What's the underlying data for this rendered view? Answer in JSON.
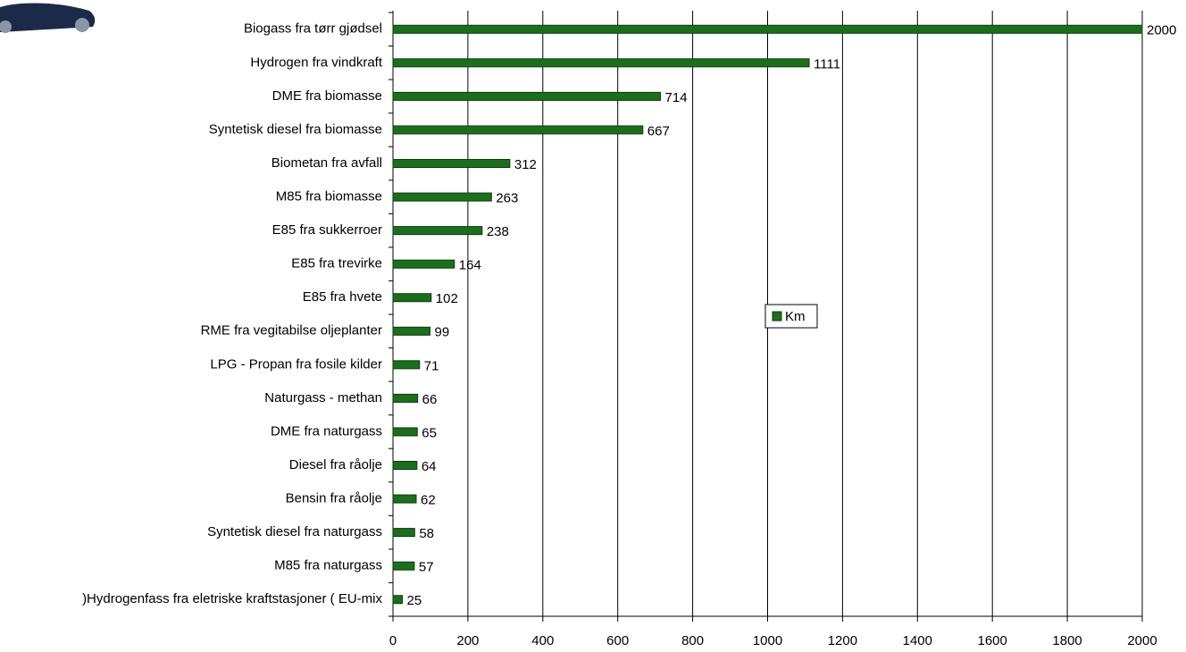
{
  "chart_data": {
    "type": "bar",
    "orientation": "horizontal",
    "categories": [
      "Biogass fra tørr gjødsel",
      "Hydrogen fra vindkraft",
      "DME fra biomasse",
      "Syntetisk diesel fra biomasse",
      "Biometan fra avfall",
      "M85 fra biomasse",
      "E85 fra sukkerroer",
      "E85 fra trevirke",
      "E85 fra hvete",
      "RME fra vegitabilse oljeplanter",
      "LPG - Propan fra fosile kilder",
      "Naturgass - methan",
      "DME fra naturgass",
      "Diesel fra råolje",
      "Bensin fra råolje",
      "Syntetisk diesel fra naturgass",
      "M85 fra naturgass",
      ")Hydrogenfass fra eletriske kraftstasjoner ( EU-mix"
    ],
    "series": [
      {
        "name": "Km",
        "color": "#1b6e1b",
        "values": [
          2000,
          1111,
          714,
          667,
          312,
          263,
          238,
          164,
          102,
          99,
          71,
          66,
          65,
          64,
          62,
          58,
          57,
          25
        ]
      }
    ],
    "xlim": [
      0,
      2000
    ],
    "xticks": [
      0,
      200,
      400,
      600,
      800,
      1000,
      1200,
      1400,
      1600,
      1800,
      2000
    ],
    "grid": true,
    "legend": "center-right"
  }
}
